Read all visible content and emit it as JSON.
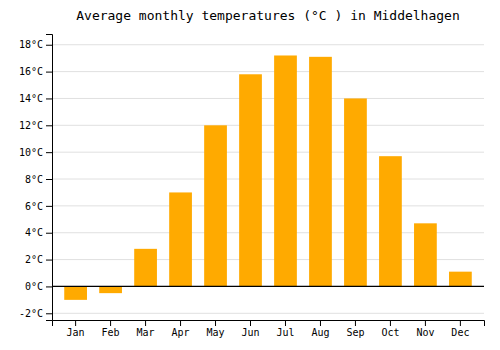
{
  "chart_data": {
    "type": "bar",
    "title": "Average monthly temperatures (°C ) in Middelhagen",
    "categories": [
      "Jan",
      "Feb",
      "Mar",
      "Apr",
      "May",
      "Jun",
      "Jul",
      "Aug",
      "Sep",
      "Oct",
      "Nov",
      "Dec"
    ],
    "values": [
      -1.0,
      -0.5,
      2.8,
      7.0,
      12.0,
      15.8,
      17.2,
      17.1,
      14.0,
      9.7,
      4.7,
      1.1
    ],
    "color": "#FFAA00",
    "ylim": [
      -2.5,
      18.8
    ],
    "yticks": [
      {
        "value": -2,
        "label": "-2°C"
      },
      {
        "value": 0,
        "label": "0°C"
      },
      {
        "value": 2,
        "label": "2°C"
      },
      {
        "value": 4,
        "label": "4°C"
      },
      {
        "value": 6,
        "label": "6°C"
      },
      {
        "value": 8,
        "label": "8°C"
      },
      {
        "value": 10,
        "label": "10°C"
      },
      {
        "value": 12,
        "label": "12°C"
      },
      {
        "value": 14,
        "label": "14°C"
      },
      {
        "value": 16,
        "label": "16°C"
      },
      {
        "value": 18,
        "label": "18°C"
      }
    ],
    "grid": true
  }
}
